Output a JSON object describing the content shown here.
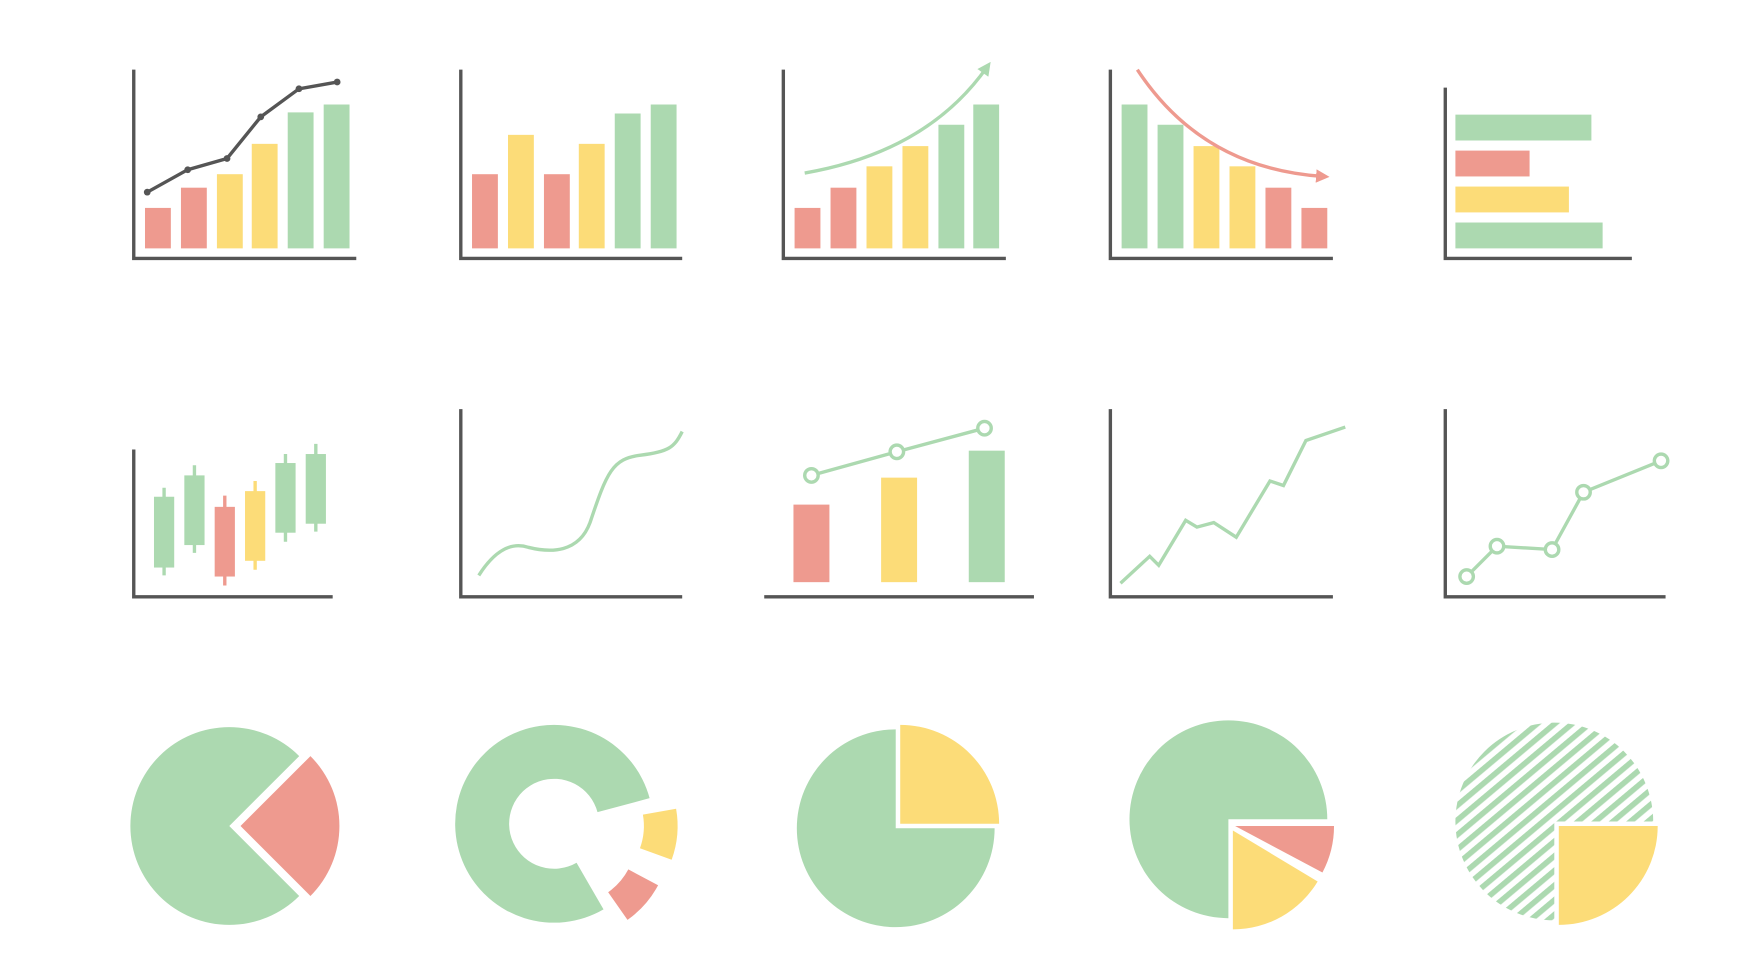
{
  "colors": {
    "green": "#acd9b0",
    "red": "#ee9a8f",
    "yellow": "#fcdc78",
    "axis": "#555555",
    "trend_dark": "#555555",
    "background": "#ffffff"
  },
  "icons": [
    "bar-chart-with-trend-line-icon",
    "bar-chart-icon",
    "growth-bar-chart-arrow-icon",
    "decline-bar-chart-arrow-icon",
    "horizontal-bar-chart-icon",
    "candlestick-chart-icon",
    "smooth-line-chart-icon",
    "bar-chart-with-points-icon",
    "zigzag-line-chart-icon",
    "point-line-chart-icon",
    "exploded-pie-chart-icon",
    "exploded-donut-chart-icon",
    "quarter-pie-chart-icon",
    "split-pie-chart-icon",
    "hatched-pie-chart-icon"
  ]
}
